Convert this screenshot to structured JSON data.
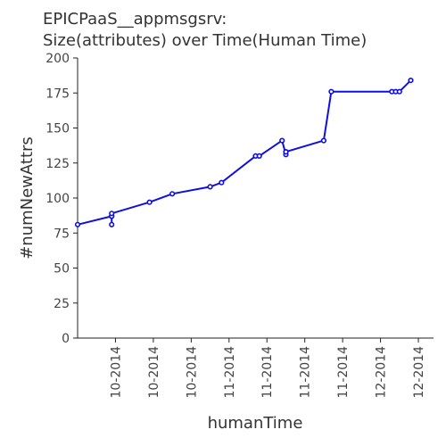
{
  "chart_data": {
    "type": "line",
    "title_lines": [
      "EPICPaaS__appmsgsrv:",
      "Size(attributes) over Time(Human Time)"
    ],
    "xlabel": "humanTime",
    "ylabel": "#numNewAttrs",
    "ylim": [
      0,
      200
    ],
    "yticks": [
      0,
      25,
      50,
      75,
      100,
      125,
      150,
      175,
      200
    ],
    "xlim": [
      "2014-09-18",
      "2014-12-21"
    ],
    "xticks": [
      {
        "date": "2014-09-28",
        "label": "10-2014"
      },
      {
        "date": "2014-10-08",
        "label": "10-2014"
      },
      {
        "date": "2014-10-18",
        "label": "10-2014"
      },
      {
        "date": "2014-10-28",
        "label": "11-2014"
      },
      {
        "date": "2014-11-07",
        "label": "11-2014"
      },
      {
        "date": "2014-11-17",
        "label": "11-2014"
      },
      {
        "date": "2014-11-27",
        "label": "11-2014"
      },
      {
        "date": "2014-12-07",
        "label": "12-2014"
      },
      {
        "date": "2014-12-17",
        "label": "12-2014"
      }
    ],
    "grid": false,
    "line_color": "#1010dd",
    "series": [
      {
        "x": [
          "2014-09-18",
          "2014-09-27",
          "2014-09-27",
          "2014-09-27",
          "2014-09-27",
          "2014-10-07",
          "2014-10-13",
          "2014-10-23",
          "2014-10-26",
          "2014-11-04",
          "2014-11-05",
          "2014-11-11",
          "2014-11-12",
          "2014-11-12",
          "2014-11-12",
          "2014-11-22",
          "2014-11-24",
          "2014-12-10",
          "2014-12-11",
          "2014-12-12",
          "2014-12-15"
        ],
        "values": [
          81,
          87,
          81,
          87,
          89,
          97,
          103,
          108,
          111,
          130,
          130,
          141,
          131,
          133,
          133,
          141,
          176,
          176,
          176,
          176,
          184
        ]
      }
    ]
  }
}
